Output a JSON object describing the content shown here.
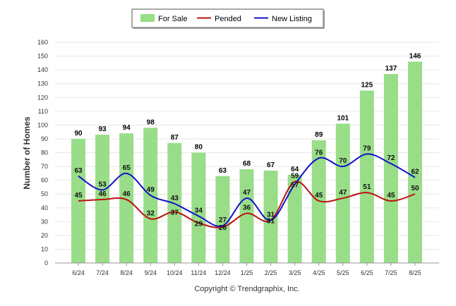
{
  "chart_data": {
    "type": "bar",
    "title": "",
    "xlabel": "",
    "ylabel": "Number of Homes",
    "ylim": [
      0,
      160
    ],
    "yticks": [
      0,
      10,
      20,
      30,
      40,
      50,
      60,
      70,
      80,
      90,
      100,
      110,
      120,
      130,
      140,
      150,
      160
    ],
    "grid": true,
    "legend_position": "top",
    "categories": [
      "6/24",
      "7/24",
      "8/24",
      "9/24",
      "10/24",
      "11/24",
      "12/24",
      "1/25",
      "2/25",
      "3/25",
      "4/25",
      "5/25",
      "6/25",
      "7/25",
      "8/25"
    ],
    "series": [
      {
        "name": "For Sale",
        "kind": "bar",
        "color": "#99dd88",
        "values": [
          90,
          93,
          94,
          98,
          87,
          80,
          63,
          68,
          67,
          64,
          89,
          101,
          125,
          137,
          146
        ]
      },
      {
        "name": "Pended",
        "kind": "line",
        "color": "#bb1111",
        "values": [
          45,
          46,
          46,
          32,
          37,
          29,
          26,
          36,
          31,
          59,
          45,
          47,
          51,
          45,
          50
        ]
      },
      {
        "name": "New Listing",
        "kind": "line",
        "color": "#1111cc",
        "values": [
          63,
          53,
          65,
          49,
          43,
          34,
          27,
          47,
          31,
          57,
          76,
          70,
          79,
          72,
          62
        ]
      }
    ]
  },
  "copyright": "Copyright © Trendgraphix, Inc."
}
